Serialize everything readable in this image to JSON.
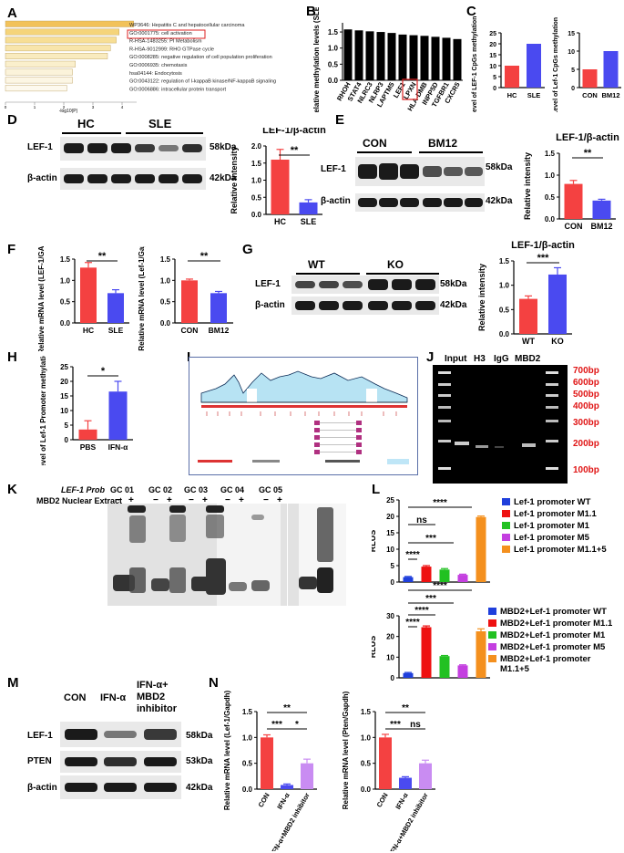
{
  "labels": {
    "A": "A",
    "B": "B",
    "C": "C",
    "D": "D",
    "E": "E",
    "F": "F",
    "G": "G",
    "H": "H",
    "I": "I",
    "J": "J",
    "K": "K",
    "L": "L",
    "M": "M",
    "N": "N"
  },
  "panelA": {
    "terms": [
      "WP3646: Hepatitis C and hepatocellular carcinoma",
      "GO:0001775: cell activation",
      "R-HSA-1483255: PI Metabolism",
      "R-HSA-9012999: RHO GTPase cycle",
      "GO:0008285: negative regulation of cell population proliferation",
      "GO:0006935: chemotaxis",
      "hsa04144: Endocytosis",
      "GO:0043122: regulation of I-kappaB kinase/NF-kappaB signaling",
      "GO:0006886: intracellular protein transport"
    ],
    "xlabel": "-log10(P)",
    "ticks": [
      "0",
      "1",
      "2",
      "3",
      "4"
    ],
    "colors": [
      "#f2c25a",
      "#f5d47a",
      "#f7de95",
      "#f8e5ab",
      "#f9ebbf",
      "#faefcc",
      "#fbf3da",
      "#fcf6e4",
      "#fdf9ee"
    ]
  },
  "panelB": {
    "ylabel": "Relative methylation levels (SLE/HC)",
    "ticks": [
      "0.0",
      "0.5",
      "1.0",
      "1.5"
    ],
    "genes": [
      "RHOH",
      "STAT4",
      "NLRC3",
      "NLRP3",
      "LAPTM5",
      "LEF1",
      "LPXN",
      "HLA-DMB",
      "INPP5D",
      "TGFBR1",
      "CXCR5"
    ]
  },
  "panelC": {
    "left": {
      "ylabel": "Level of LEF-1 CpGs methylation (%)",
      "ticks": [
        "0",
        "5",
        "10",
        "15",
        "20",
        "25"
      ],
      "categories": [
        "HC",
        "SLE"
      ]
    },
    "right": {
      "ylabel": "Level of Lef-1 CpGs methylation (%)",
      "ticks": [
        "0",
        "5",
        "10",
        "15"
      ],
      "categories": [
        "CON",
        "BM12"
      ]
    }
  },
  "panelD": {
    "groups": [
      "HC",
      "SLE"
    ],
    "rows": [
      "LEF-1",
      "β-actin"
    ],
    "sizes": [
      "58kDa",
      "42kDa"
    ],
    "title": "LEF-1/β-actin",
    "ylabel": "Relative intensity",
    "ticks": [
      "0.0",
      "0.5",
      "1.0",
      "1.5",
      "2.0"
    ],
    "categories": [
      "HC",
      "SLE"
    ],
    "sig": "**"
  },
  "panelE": {
    "groups": [
      "CON",
      "BM12"
    ],
    "rows": [
      "LEF-1",
      "β-actin"
    ],
    "sizes": [
      "58kDa",
      "42kDa"
    ],
    "title": "LEF-1/β-actin",
    "ylabel": "Relative intensity",
    "ticks": [
      "0.0",
      "0.5",
      "1.0",
      "1.5"
    ],
    "categories": [
      "CON",
      "BM12"
    ],
    "sig": "**"
  },
  "panelF": {
    "left": {
      "ylabel": "Relative mRNA level (LEF-1/GAPDH)",
      "ticks": [
        "0.0",
        "0.5",
        "1.0",
        "1.5"
      ],
      "categories": [
        "HC",
        "SLE"
      ],
      "sig": "**"
    },
    "right": {
      "ylabel": "Relative mRNA level (Lef-1/Gapdh)",
      "ticks": [
        "0.0",
        "0.5",
        "1.0",
        "1.5"
      ],
      "categories": [
        "CON",
        "BM12"
      ],
      "sig": "**"
    }
  },
  "panelG": {
    "groups": [
      "WT",
      "KO"
    ],
    "rows": [
      "LEF-1",
      "β-actin"
    ],
    "sizes": [
      "58kDa",
      "42kDa"
    ],
    "title": "LEF-1/β-actin",
    "ylabel": "Relative intensity",
    "ticks": [
      "0.0",
      "0.5",
      "1.0",
      "1.5"
    ],
    "categories": [
      "WT",
      "KO"
    ],
    "sig": "***"
  },
  "panelH": {
    "ylabel": "Level of Lef-1 Promoter methylation (%)",
    "ticks": [
      "0",
      "5",
      "10",
      "15",
      "20",
      "25"
    ],
    "categories": [
      "PBS",
      "IFN-α"
    ],
    "sig": "*"
  },
  "panelJ": {
    "lanes": [
      "Input",
      "H3",
      "IgG",
      "MBD2"
    ],
    "sizes": [
      "700bp",
      "600bp",
      "500bp",
      "400bp",
      "300bp",
      "200bp",
      "100bp"
    ]
  },
  "panelK": {
    "probe": "LEF-1 Prob",
    "extract": "MBD2 Nuclear Extract",
    "probes": [
      "GC 01",
      "GC 02",
      "GC 03",
      "GC 04",
      "GC 05"
    ],
    "minus": "−",
    "plus": "+"
  },
  "panelL": {
    "top": {
      "ylabel": "RLUS",
      "ticks": [
        "0",
        "5",
        "10",
        "15",
        "20",
        "25"
      ],
      "sigs": [
        "****",
        "ns",
        "***",
        "****"
      ],
      "legend": [
        "Lef-1 promoter WT",
        "Lef-1 promoter M1.1",
        "Lef-1 promoter M1",
        "Lef-1 promoter M5",
        "Lef-1 promoter M1.1+5"
      ]
    },
    "bottom": {
      "ylabel": "RLUS",
      "ticks": [
        "0",
        "10",
        "20",
        "30"
      ],
      "sigs": [
        "****",
        "***",
        "****",
        "****"
      ],
      "legend": [
        "MBD2+Lef-1 promoter WT",
        "MBD2+Lef-1 promoter M1.1",
        "MBD2+Lef-1 promoter M1",
        "MBD2+Lef-1 promoter M5",
        "MBD2+Lef-1 promoter M1.1+5"
      ]
    },
    "colors": [
      "#1f3fdc",
      "#ee1111",
      "#22c122",
      "#c43fe0",
      "#f4901e"
    ]
  },
  "panelM": {
    "groups": [
      "CON",
      "IFN-α",
      "IFN-α+ MBD2 inhibitor"
    ],
    "rows": [
      "LEF-1",
      "PTEN",
      "β-actin"
    ],
    "sizes": [
      "58kDa",
      "53kDa",
      "42kDa"
    ]
  },
  "panelN": {
    "left": {
      "ylabel": "Relative mRNA level (Lef-1/Gapdh)",
      "ticks": [
        "0.0",
        "0.5",
        "1.0",
        "1.5"
      ],
      "categories": [
        "CON",
        "IFN-α",
        "IFN-α+MBD2 inhibitor"
      ],
      "sigs": [
        "**",
        "***",
        "*"
      ]
    },
    "right": {
      "ylabel": "Relative mRNA level (Pten/Gapdh)",
      "ticks": [
        "0.0",
        "0.5",
        "1.0",
        "1.5"
      ],
      "categories": [
        "CON",
        "IFN-α",
        "IFN-α+MBD2 inhibitor"
      ],
      "sigs": [
        "**",
        "***",
        "ns"
      ]
    }
  },
  "chart_data": [
    {
      "type": "bar",
      "id": "A",
      "orientation": "horizontal",
      "categories": [
        "WP3646",
        "GO:0001775",
        "R-HSA-1483255",
        "R-HSA-9012999",
        "GO:0008285",
        "GO:0006935",
        "hsa04144",
        "GO:0043122",
        "GO:0006886"
      ],
      "values": [
        4.4,
        3.9,
        3.8,
        3.6,
        3.5,
        2.4,
        2.3,
        2.3,
        2.1
      ],
      "xlabel": "-log10(P)",
      "xlim": [
        0,
        4.5
      ]
    },
    {
      "type": "bar",
      "id": "B",
      "categories": [
        "RHOH",
        "STAT4",
        "NLRC3",
        "NLRP3",
        "LAPTM5",
        "LEF1",
        "LPXN",
        "HLA-DMB",
        "INPP5D",
        "TGFBR1",
        "CXCR5"
      ],
      "values": [
        1.58,
        1.55,
        1.52,
        1.5,
        1.47,
        1.42,
        1.4,
        1.38,
        1.35,
        1.32,
        1.28
      ],
      "ylabel": "Relative methylation levels (SLE/HC)",
      "ylim": [
        0,
        1.7
      ]
    },
    {
      "type": "bar",
      "id": "C-left",
      "categories": [
        "HC",
        "SLE"
      ],
      "values": [
        10,
        20
      ],
      "ylim": [
        0,
        25
      ]
    },
    {
      "type": "bar",
      "id": "C-right",
      "categories": [
        "CON",
        "BM12"
      ],
      "values": [
        5,
        10
      ],
      "ylim": [
        0,
        15
      ]
    },
    {
      "type": "bar",
      "id": "D",
      "categories": [
        "HC",
        "SLE"
      ],
      "values": [
        1.6,
        0.35
      ],
      "errors": [
        0.3,
        0.08
      ],
      "ylim": [
        0,
        2.0
      ]
    },
    {
      "type": "bar",
      "id": "E",
      "categories": [
        "CON",
        "BM12"
      ],
      "values": [
        0.8,
        0.42
      ],
      "errors": [
        0.08,
        0.03
      ],
      "ylim": [
        0,
        1.5
      ]
    },
    {
      "type": "bar",
      "id": "F-left",
      "categories": [
        "HC",
        "SLE"
      ],
      "values": [
        1.3,
        0.7
      ],
      "errors": [
        0.12,
        0.08
      ],
      "ylim": [
        0,
        1.5
      ]
    },
    {
      "type": "bar",
      "id": "F-right",
      "categories": [
        "CON",
        "BM12"
      ],
      "values": [
        1.0,
        0.7
      ],
      "errors": [
        0.03,
        0.04
      ],
      "ylim": [
        0,
        1.5
      ]
    },
    {
      "type": "bar",
      "id": "G",
      "categories": [
        "WT",
        "KO"
      ],
      "values": [
        0.72,
        1.22
      ],
      "errors": [
        0.06,
        0.14
      ],
      "ylim": [
        0,
        1.5
      ]
    },
    {
      "type": "bar",
      "id": "H",
      "categories": [
        "PBS",
        "IFN-α"
      ],
      "values": [
        3.5,
        16.5
      ],
      "errors": [
        3,
        3.5
      ],
      "ylim": [
        0,
        25
      ]
    },
    {
      "type": "bar",
      "id": "L-top",
      "categories": [
        "WT",
        "M1.1",
        "M1",
        "M5",
        "M1.1+5"
      ],
      "values": [
        1.5,
        4.7,
        3.8,
        2.2,
        19.8
      ],
      "errors": [
        0.2,
        0.3,
        0.3,
        0.2,
        0.3
      ],
      "ylim": [
        0,
        25
      ]
    },
    {
      "type": "bar",
      "id": "L-bottom",
      "categories": [
        "WT",
        "M1.1",
        "M1",
        "M5",
        "M1.1+5"
      ],
      "values": [
        2.3,
        24.5,
        10.5,
        6,
        22.5
      ],
      "errors": [
        0.3,
        0.6,
        0.3,
        0.3,
        1.2
      ],
      "ylim": [
        0,
        30
      ]
    },
    {
      "type": "bar",
      "id": "N-left",
      "categories": [
        "CON",
        "IFN-α",
        "IFN-α+MBD2 inhibitor"
      ],
      "values": [
        1.0,
        0.08,
        0.5
      ],
      "errors": [
        0.05,
        0.02,
        0.08
      ],
      "ylim": [
        0,
        1.5
      ]
    },
    {
      "type": "bar",
      "id": "N-right",
      "categories": [
        "CON",
        "IFN-α",
        "IFN-α+MBD2 inhibitor"
      ],
      "values": [
        1.0,
        0.22,
        0.5
      ],
      "errors": [
        0.06,
        0.02,
        0.06
      ],
      "ylim": [
        0,
        1.5
      ]
    }
  ]
}
